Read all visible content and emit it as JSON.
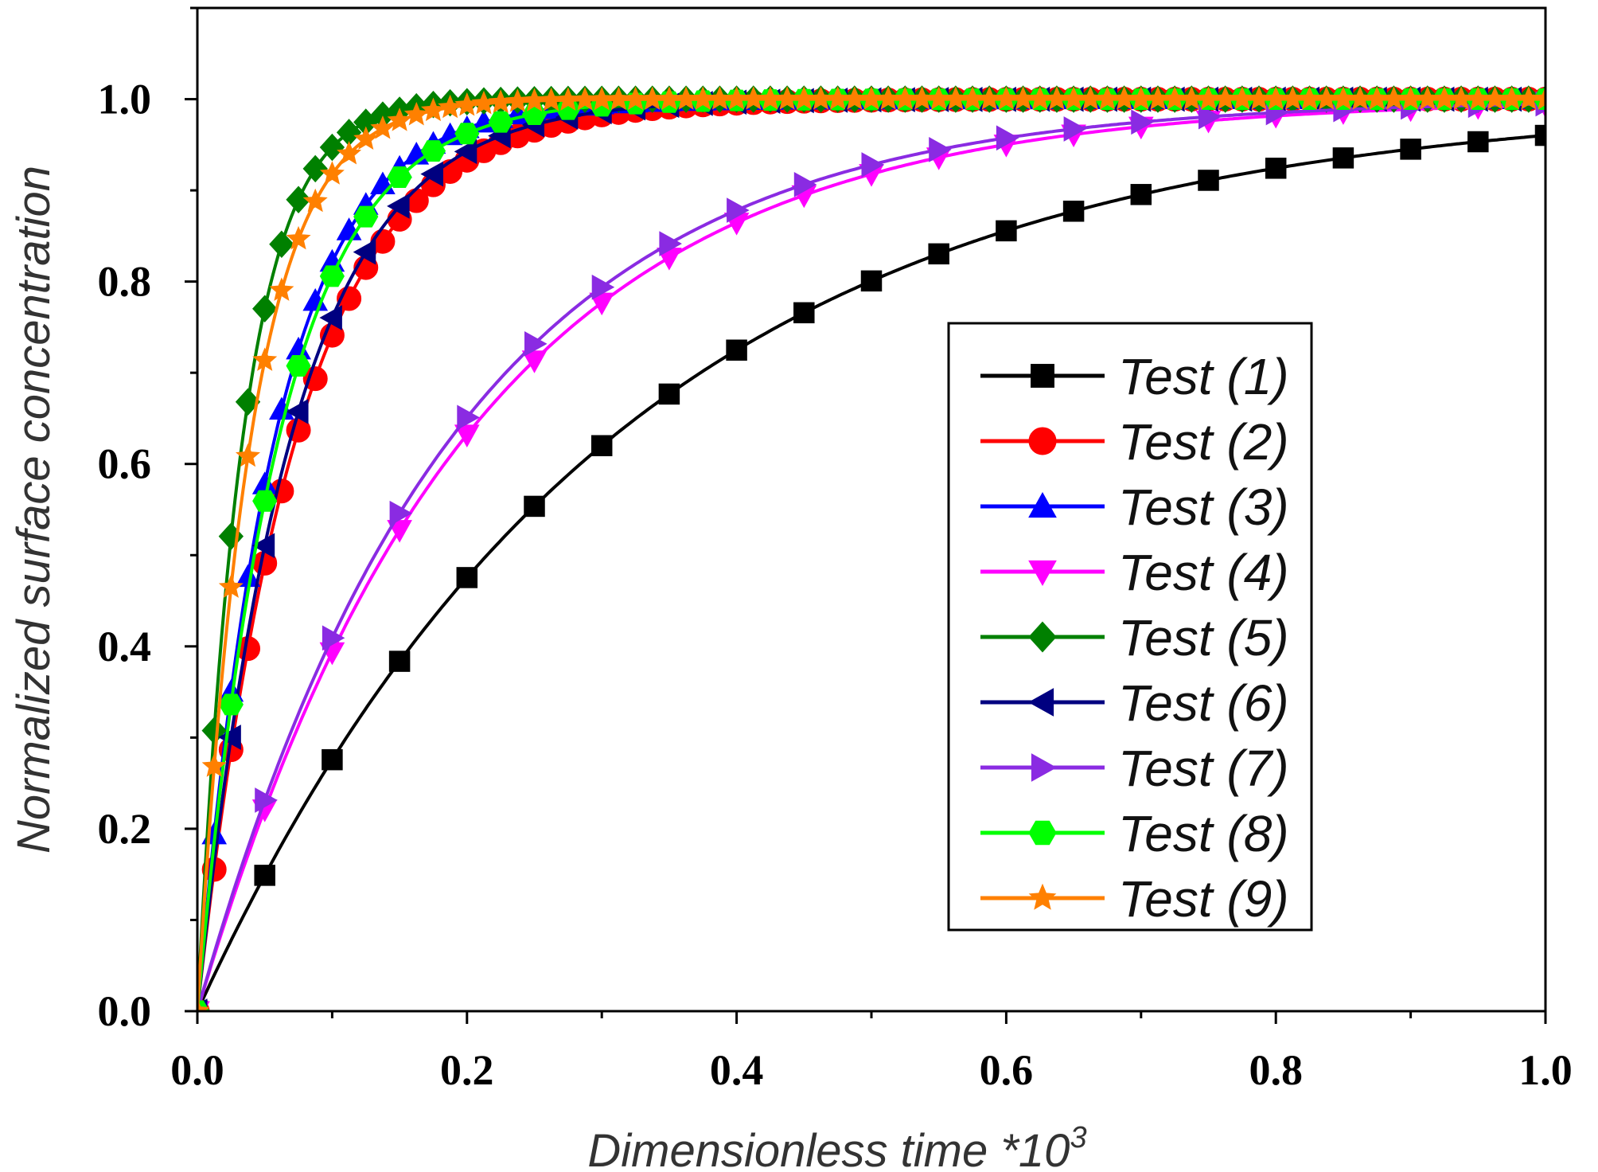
{
  "chart_data": {
    "type": "line",
    "title": "",
    "xlabel": "Dimensionless time *10",
    "xlabel_superscript": "3",
    "ylabel": "Normalized surface concentration",
    "xlim": [
      0,
      1.0
    ],
    "ylim": [
      0,
      1.1
    ],
    "x_ticks": [
      "0.0",
      "0.2",
      "0.4",
      "0.6",
      "0.8",
      "1.0"
    ],
    "y_ticks": [
      "0.0",
      "0.2",
      "0.4",
      "0.6",
      "0.8",
      "1.0"
    ],
    "grid": false,
    "legend_position": "center-right",
    "series": [
      {
        "name": "Test (1)",
        "color": "#000000",
        "marker": "square",
        "tau": 0.31,
        "marker_step": 0.05
      },
      {
        "name": "Test (2)",
        "color": "#ff0000",
        "marker": "circle",
        "tau": 0.074,
        "marker_step": 0.0125
      },
      {
        "name": "Test (3)",
        "color": "#0000ff",
        "marker": "triangle-up",
        "tau": 0.058,
        "marker_step": 0.0125
      },
      {
        "name": "Test (4)",
        "color": "#ff00ff",
        "marker": "triangle-down",
        "tau": 0.2,
        "marker_step": 0.05
      },
      {
        "name": "Test (5)",
        "color": "#008000",
        "marker": "diamond",
        "tau": 0.034,
        "marker_step": 0.0125
      },
      {
        "name": "Test (6)",
        "color": "#000080",
        "marker": "triangle-left",
        "tau": 0.07,
        "marker_step": 0.025
      },
      {
        "name": "Test (7)",
        "color": "#8a2be2",
        "marker": "triangle-right",
        "tau": 0.19,
        "marker_step": 0.05
      },
      {
        "name": "Test (8)",
        "color": "#00ff00",
        "marker": "hexagon",
        "tau": 0.061,
        "marker_step": 0.025
      },
      {
        "name": "Test (9)",
        "color": "#ff8000",
        "marker": "star",
        "tau": 0.04,
        "marker_step": 0.0125
      }
    ]
  }
}
